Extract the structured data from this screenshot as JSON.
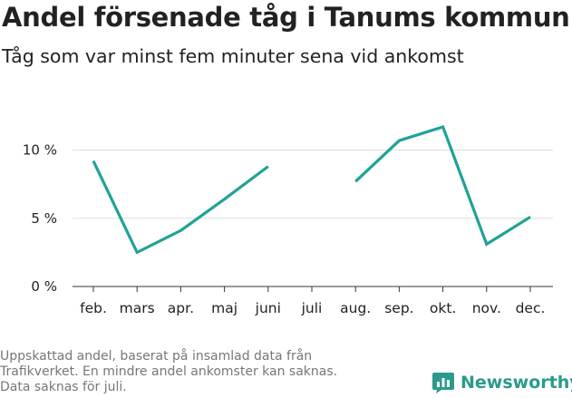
{
  "title": "Andel försenade tåg i Tanums kommun",
  "subtitle": "Tåg som var minst fem minuter sena vid ankomst",
  "footnote": [
    "Uppskattad andel, baserat på insamlad data från",
    "Trafikverket. En mindre andel ankomster kan saknas.",
    "Data saknas för juli."
  ],
  "brand": {
    "name": "Newsworthy",
    "logo": "bar-chart-logo-icon"
  },
  "colors": {
    "line": "#1fa396",
    "grid": "#dddddd",
    "axis": "#333333",
    "text": "#222222",
    "muted": "#777777",
    "brand": "#2a9a8c"
  },
  "chart_data": {
    "type": "line",
    "categories": [
      "feb.",
      "mars",
      "apr.",
      "maj",
      "juni",
      "juli",
      "aug.",
      "sep.",
      "okt.",
      "nov.",
      "dec."
    ],
    "series": [
      {
        "name": "Andel försenade tåg",
        "values": [
          9.2,
          2.5,
          4.1,
          6.4,
          8.8,
          null,
          7.7,
          10.7,
          11.7,
          3.1,
          5.1
        ]
      }
    ],
    "y_ticks": [
      {
        "value": 0,
        "label": "0 %"
      },
      {
        "value": 5,
        "label": "5 %"
      },
      {
        "value": 10,
        "label": "10 %"
      }
    ],
    "ylim": [
      0,
      12.5
    ],
    "xlabel": "",
    "ylabel": "",
    "grid": true
  }
}
